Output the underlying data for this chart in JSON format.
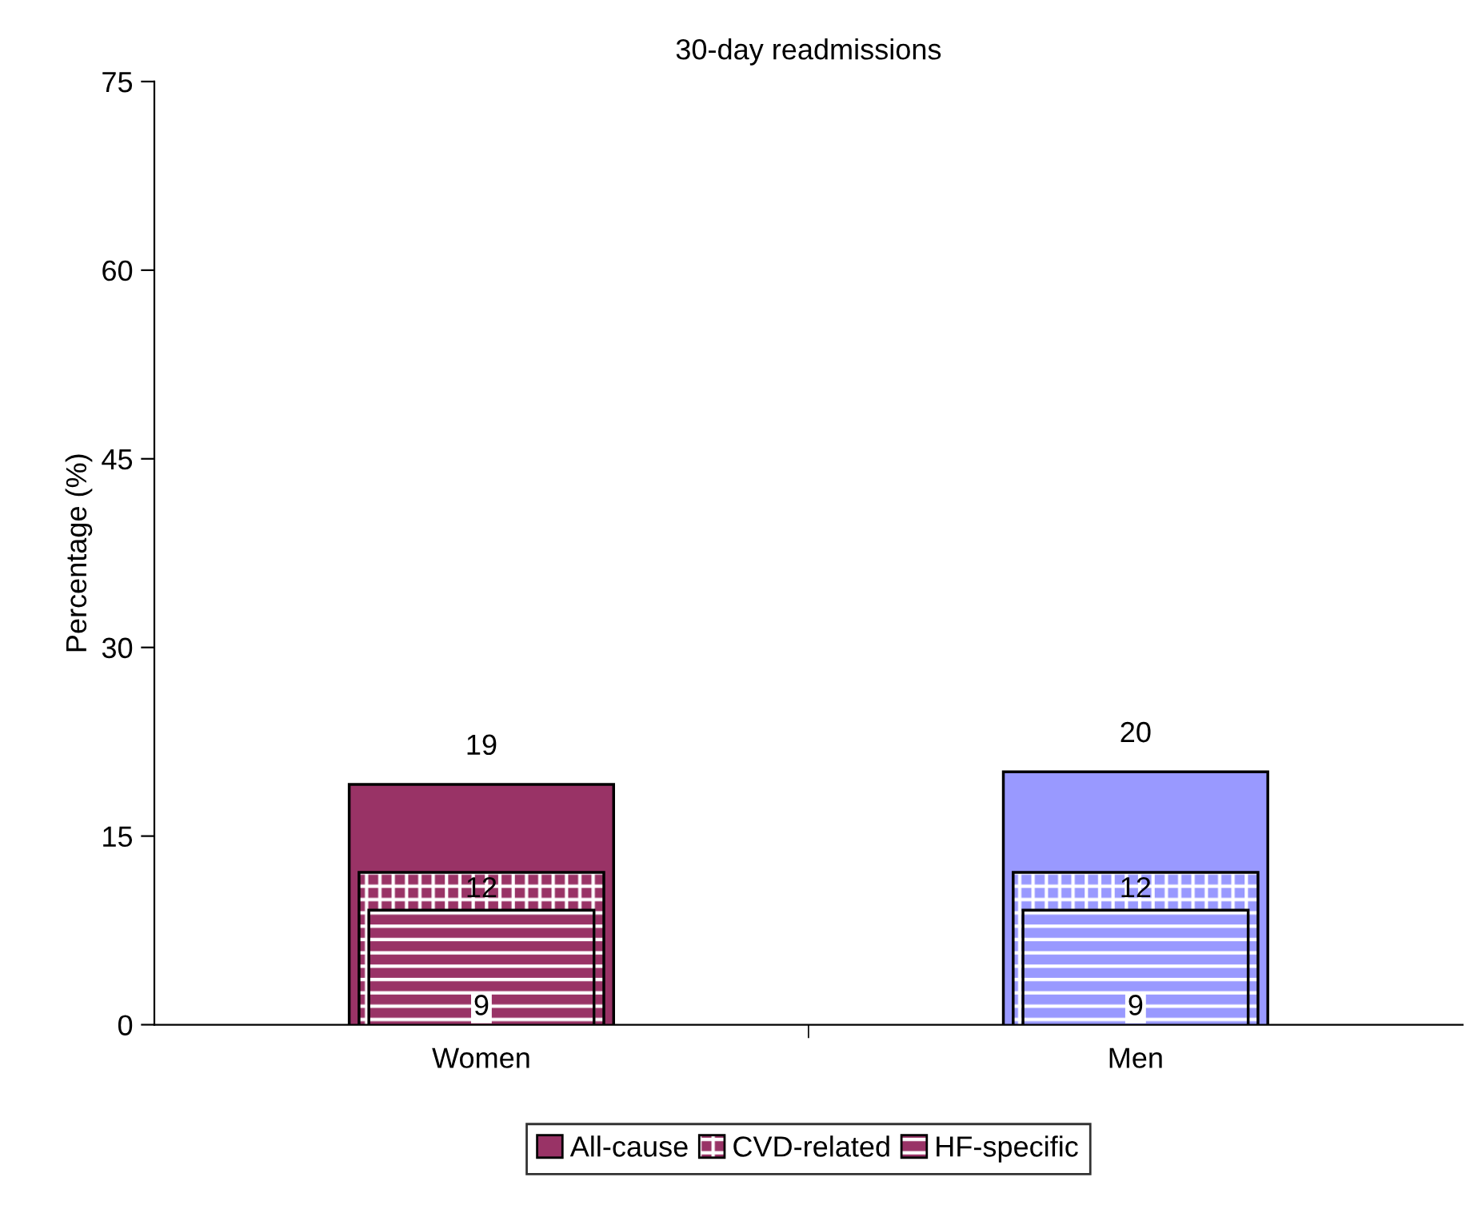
{
  "chart_data": {
    "type": "bar",
    "title": "30-day readmissions",
    "ylabel": "Percentage (%)",
    "categories": [
      "Women",
      "Men"
    ],
    "series": [
      {
        "name": "All-cause",
        "colors": [
          "#993366",
          "#9999ff"
        ],
        "values": [
          19,
          20
        ]
      },
      {
        "name": "CVD-related",
        "colors": [
          "#993366",
          "#9999ff"
        ],
        "values": [
          12,
          12
        ]
      },
      {
        "name": "HF-specific",
        "colors": [
          "#993366",
          "#9999ff"
        ],
        "values": [
          9,
          9
        ]
      }
    ],
    "ylim": [
      0,
      75
    ],
    "yticks": [
      0,
      15,
      30,
      45,
      60,
      75
    ],
    "data_labels": true,
    "legend": "bottom",
    "grid": false
  }
}
